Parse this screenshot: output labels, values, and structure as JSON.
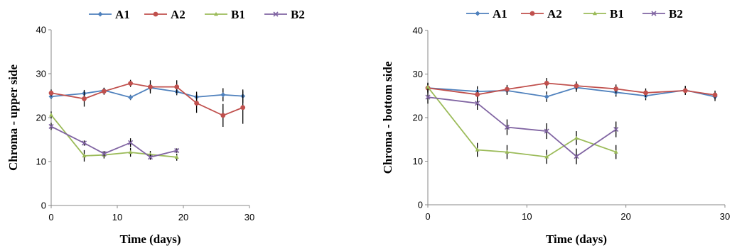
{
  "chart_data": [
    {
      "type": "line",
      "title": "",
      "xlabel": "Time (days)",
      "ylabel": "Chroma  - upper side",
      "xlim": [
        0,
        30
      ],
      "ylim": [
        0,
        40
      ],
      "xticks": [
        "0",
        "10",
        "20",
        "30"
      ],
      "yticks": [
        "0",
        "10",
        "20",
        "30",
        "40"
      ],
      "grid": false,
      "legend_position": "top",
      "series": [
        {
          "name": "A1",
          "color": "#4F81BD",
          "marker": "diamond",
          "x": [
            0,
            5,
            8,
            12,
            15,
            19,
            22,
            26,
            29
          ],
          "y": [
            24.8,
            25.5,
            26.2,
            24.6,
            26.8,
            25.9,
            24.7,
            25.2,
            24.9
          ],
          "err": [
            0.6,
            0.8,
            0.6,
            0.6,
            0.8,
            0.8,
            1.2,
            1.5,
            1.5
          ]
        },
        {
          "name": "A2",
          "color": "#C0504D",
          "marker": "square",
          "x": [
            0,
            5,
            8,
            12,
            15,
            19,
            22,
            26,
            29
          ],
          "y": [
            25.6,
            24.3,
            26.0,
            27.8,
            27.0,
            27.0,
            23.3,
            20.5,
            22.3
          ],
          "err": [
            0.8,
            1.8,
            0.8,
            0.8,
            1.5,
            1.5,
            2.2,
            2.6,
            3.7
          ]
        },
        {
          "name": "B1",
          "color": "#9BBB59",
          "marker": "triangle",
          "x": [
            0,
            5,
            8,
            12,
            15,
            19
          ],
          "y": [
            20.6,
            11.3,
            11.5,
            12.1,
            11.6,
            11.0
          ],
          "err": [
            0.8,
            1.3,
            0.8,
            1.0,
            0.8,
            0.8
          ]
        },
        {
          "name": "B2",
          "color": "#8064A2",
          "marker": "x",
          "x": [
            0,
            5,
            8,
            12,
            15,
            19
          ],
          "y": [
            18.0,
            14.2,
            11.8,
            14.3,
            11.0,
            12.5
          ],
          "err": [
            0.8,
            0.6,
            0.6,
            1.0,
            0.6,
            0.5
          ]
        }
      ]
    },
    {
      "type": "line",
      "title": "",
      "xlabel": "Time (days)",
      "ylabel": "Chroma  - bottom side",
      "xlim": [
        0,
        30
      ],
      "ylim": [
        0,
        40
      ],
      "xticks": [
        "0",
        "10",
        "20",
        "30"
      ],
      "yticks": [
        "0",
        "10",
        "20",
        "30",
        "40"
      ],
      "grid": false,
      "legend_position": "top",
      "series": [
        {
          "name": "A1",
          "color": "#4F81BD",
          "marker": "diamond",
          "x": [
            0,
            5,
            8,
            12,
            15,
            19,
            22,
            26,
            29
          ],
          "y": [
            26.8,
            26.0,
            26.2,
            24.8,
            26.9,
            25.8,
            25.0,
            26.3,
            24.8
          ],
          "err": [
            1.2,
            1.2,
            1.0,
            1.2,
            1.0,
            1.0,
            1.0,
            1.0,
            1.0
          ]
        },
        {
          "name": "A2",
          "color": "#C0504D",
          "marker": "square",
          "x": [
            0,
            5,
            8,
            12,
            15,
            19,
            22,
            26,
            29
          ],
          "y": [
            26.8,
            25.3,
            26.5,
            27.9,
            27.3,
            26.6,
            25.7,
            26.2,
            25.2
          ],
          "err": [
            1.0,
            1.0,
            1.0,
            1.2,
            1.0,
            1.0,
            1.0,
            1.0,
            1.0
          ]
        },
        {
          "name": "B1",
          "color": "#9BBB59",
          "marker": "triangle",
          "x": [
            0,
            5,
            8,
            12,
            15,
            19
          ],
          "y": [
            27.0,
            12.6,
            12.1,
            11.0,
            15.3,
            12.1
          ],
          "err": [
            1.0,
            1.6,
            1.6,
            1.6,
            1.6,
            1.6
          ]
        },
        {
          "name": "B2",
          "color": "#8064A2",
          "marker": "x",
          "x": [
            0,
            5,
            8,
            12,
            15,
            19
          ],
          "y": [
            24.7,
            23.3,
            17.8,
            16.9,
            11.1,
            17.3
          ],
          "err": [
            1.5,
            1.5,
            1.8,
            1.8,
            1.8,
            1.8
          ]
        }
      ]
    }
  ]
}
